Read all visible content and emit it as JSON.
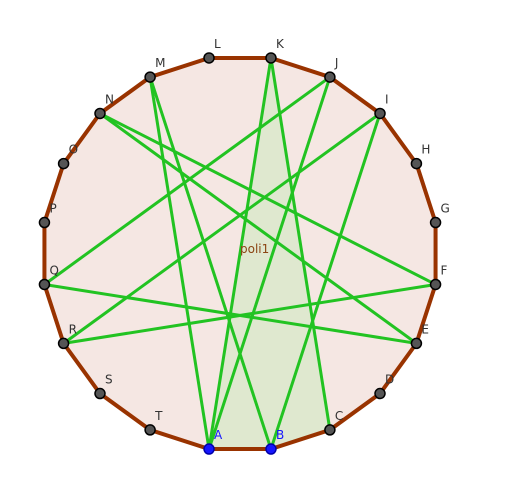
{
  "points": [
    "A",
    "B",
    "C",
    "D",
    "E",
    "F",
    "G",
    "H",
    "I",
    "J",
    "K",
    "L",
    "M",
    "N",
    "O",
    "P",
    "Q",
    "R",
    "S",
    "T"
  ],
  "polygon_label": "poli1"
}
